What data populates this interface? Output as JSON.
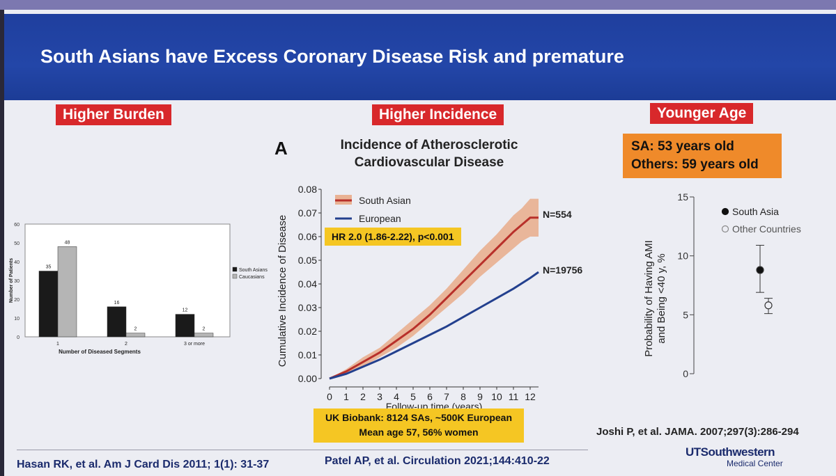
{
  "slide_title": "South Asians have Excess Coronary Disease Risk and premature",
  "sections": {
    "burden": "Higher Burden",
    "incidence": "Higher Incidence",
    "age": "Younger Age"
  },
  "chart_data": [
    {
      "type": "bar",
      "title": "",
      "xlabel": "Number of Diseased Segments",
      "ylabel": "Number of Patients",
      "categories": [
        "1",
        "2",
        "3 or more"
      ],
      "ylim": [
        0,
        60
      ],
      "yticks": [
        "0",
        "10",
        "20",
        "30",
        "40",
        "50",
        "60"
      ],
      "series": [
        {
          "name": "South Asians",
          "values": [
            35,
            16,
            12
          ],
          "color": "#1a1a1a"
        },
        {
          "name": "Caucasians",
          "values": [
            48,
            2,
            2
          ],
          "color": "#b5b5b5"
        }
      ],
      "legend": "right"
    },
    {
      "type": "line",
      "panel_label": "A",
      "title_line1": "Incidence of Atherosclerotic",
      "title_line2": "Cardiovascular Disease",
      "xlabel": "Follow-up time (years)",
      "ylabel": "Cumulative Incidence of Disease",
      "xlim": [
        0,
        12.5
      ],
      "ylim": [
        0,
        0.08
      ],
      "xticks": [
        "0",
        "1",
        "2",
        "3",
        "4",
        "5",
        "6",
        "7",
        "8",
        "9",
        "10",
        "11",
        "12"
      ],
      "yticks": [
        "0.00",
        "0.01",
        "0.02",
        "0.03",
        "0.04",
        "0.05",
        "0.06",
        "0.07",
        "0.08"
      ],
      "series": [
        {
          "name": "South Asian",
          "color": "#b8302a",
          "band_color": "#e8a37c",
          "x": [
            0,
            1,
            2,
            3,
            4,
            5,
            6,
            7,
            8,
            9,
            10,
            11,
            11.5,
            12,
            12.5
          ],
          "y": [
            0,
            0.003,
            0.007,
            0.011,
            0.016,
            0.021,
            0.027,
            0.034,
            0.041,
            0.048,
            0.055,
            0.062,
            0.065,
            0.068,
            0.068
          ],
          "lower": [
            0,
            0.002,
            0.005,
            0.009,
            0.013,
            0.018,
            0.024,
            0.03,
            0.036,
            0.043,
            0.049,
            0.055,
            0.058,
            0.06,
            0.06
          ],
          "upper": [
            0,
            0.004,
            0.009,
            0.013,
            0.019,
            0.025,
            0.031,
            0.038,
            0.046,
            0.054,
            0.061,
            0.069,
            0.072,
            0.076,
            0.076
          ],
          "end_label": "N=554"
        },
        {
          "name": "European",
          "color": "#23408e",
          "x": [
            0,
            1,
            2,
            3,
            4,
            5,
            6,
            7,
            8,
            9,
            10,
            11,
            12,
            12.5
          ],
          "y": [
            0,
            0.002,
            0.005,
            0.008,
            0.0115,
            0.015,
            0.0185,
            0.022,
            0.026,
            0.03,
            0.034,
            0.038,
            0.0425,
            0.045
          ],
          "end_label": "N=19756"
        }
      ],
      "annotation": "HR 2.0 (1.86-2.22), p<0.001",
      "footnote_line1": "UK Biobank: 8124 SAs, ~500K European",
      "footnote_line2": "Mean age 57, 56% women"
    },
    {
      "type": "scatter",
      "ylabel_line1": "Probability of Having AMI",
      "ylabel_line2": "and Being <40 y, %",
      "ylim": [
        0,
        15
      ],
      "yticks": [
        "0",
        "5",
        "10",
        "15"
      ],
      "series": [
        {
          "name": "South Asia",
          "value": 8.8,
          "ci": [
            6.9,
            10.9
          ],
          "filled": true
        },
        {
          "name": "Other Countries",
          "value": 5.8,
          "ci": [
            5.1,
            6.4
          ],
          "filled": false
        }
      ]
    }
  ],
  "age_box": {
    "line1": "SA: 53 years old",
    "line2": "Others: 59 years old"
  },
  "citations": {
    "left": "Hasan RK, et al. Am J Card Dis 2011; 1(1): 31-37",
    "middle": "Patel AP, et al. Circulation 2021;144:410-22",
    "right": "Joshi P, et al. JAMA. 2007;297(3):286-294"
  },
  "logo": {
    "line1": "UTSouthwestern",
    "line2": "Medical Center"
  }
}
